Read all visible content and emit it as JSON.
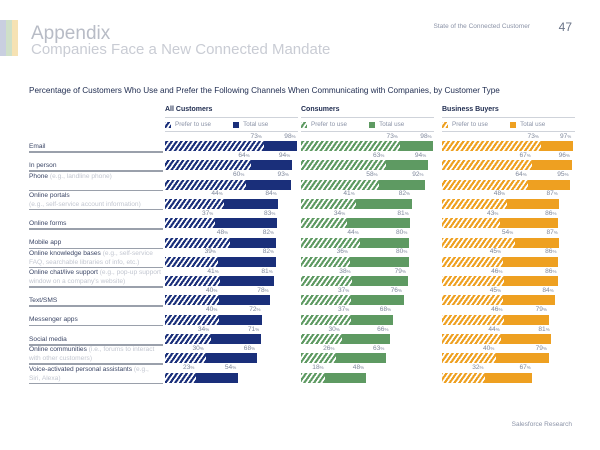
{
  "header": {
    "title": "Appendix",
    "subtitle": "Companies Face a New Connected Mandate",
    "report_name": "State of the Connected Customer",
    "page_number": "47",
    "deco_colors": [
      "#c9cfe0",
      "#cfe0c8",
      "#f6e2b3"
    ]
  },
  "footer": {
    "source": "Salesforce Research"
  },
  "chart_data": {
    "type": "bar",
    "title": "Percentage of Customers Who Use and Prefer the Following Channels When Communicating with Companies, by Customer Type",
    "xlabel": "",
    "ylabel": "",
    "xlim": [
      0,
      100
    ],
    "unit": "%",
    "legend": [
      "Prefer to use",
      "Total use"
    ],
    "categories": [
      {
        "label": "Email",
        "sub": ""
      },
      {
        "label": "In person",
        "sub": ""
      },
      {
        "label": "Phone",
        "sub": "(e.g., landline phone)"
      },
      {
        "label": "Online portals",
        "sub": "(e.g., self-service account information)"
      },
      {
        "label": "Online forms",
        "sub": ""
      },
      {
        "label": "Mobile app",
        "sub": ""
      },
      {
        "label": "Online knowledge bases",
        "sub": "(e.g., self-service FAQ, searchable libraries of info, etc.)"
      },
      {
        "label": "Online chat/live support",
        "sub": "(e.g., pop-up support window on a company's website)"
      },
      {
        "label": "Text/SMS",
        "sub": ""
      },
      {
        "label": "Messenger apps",
        "sub": ""
      },
      {
        "label": "Social media",
        "sub": ""
      },
      {
        "label": "Online communities",
        "sub": "(i.e., forums to interact with other customers)"
      },
      {
        "label": "Voice-activated personal assistants",
        "sub": "(e.g., Siri, Alexa)"
      }
    ],
    "groups": [
      {
        "name": "All Customers",
        "color": "#1a2f7a",
        "stripe_bg": "#ffffff",
        "series": [
          {
            "name": "Prefer to use",
            "values": [
              73,
              64,
              60,
              44,
              37,
              48,
              39,
              41,
              40,
              40,
              34,
              30,
              23
            ]
          },
          {
            "name": "Total use",
            "values": [
              98,
              94,
              93,
              84,
              83,
              82,
              82,
              81,
              78,
              72,
              71,
              68,
              54
            ]
          }
        ]
      },
      {
        "name": "Consumers",
        "color": "#5e9a62",
        "stripe_bg": "#ffffff",
        "series": [
          {
            "name": "Prefer to use",
            "values": [
              73,
              63,
              58,
              41,
              34,
              44,
              36,
              38,
              37,
              37,
              30,
              26,
              18
            ]
          },
          {
            "name": "Total use",
            "values": [
              98,
              94,
              92,
              82,
              81,
              80,
              80,
              79,
              76,
              68,
              66,
              63,
              48
            ]
          }
        ]
      },
      {
        "name": "Business Buyers",
        "color": "#eea021",
        "stripe_bg": "#ffffff",
        "series": [
          {
            "name": "Prefer to use",
            "values": [
              73,
              67,
              64,
              48,
              43,
              54,
              45,
              46,
              45,
              46,
              44,
              40,
              32
            ]
          },
          {
            "name": "Total use",
            "values": [
              97,
              96,
              95,
              87,
              86,
              87,
              86,
              86,
              84,
              79,
              81,
              79,
              67
            ]
          }
        ]
      }
    ]
  }
}
